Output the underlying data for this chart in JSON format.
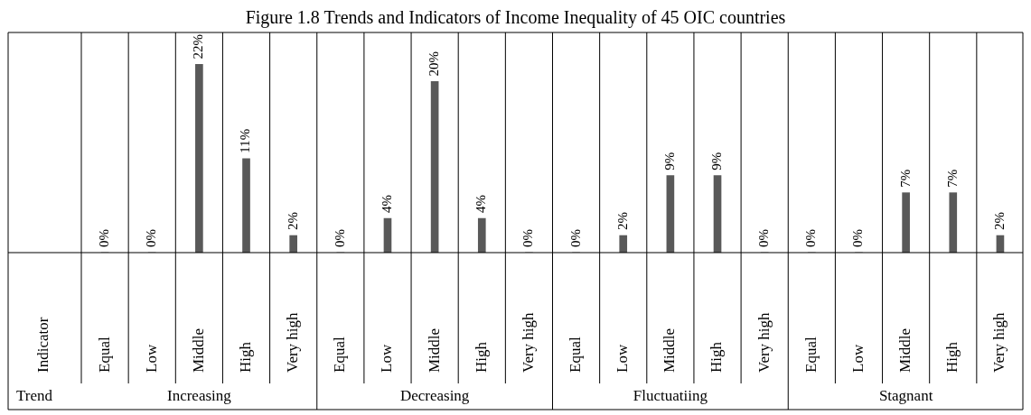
{
  "chart_data": {
    "type": "bar",
    "title": "Figure 1.8 Trends and Indicators of Income Inequality of 45 OIC countries",
    "categories": [
      "Equal",
      "Low",
      "Middle",
      "High",
      "Very high",
      "Equal",
      "Low",
      "Middle",
      "High",
      "Very high",
      "Equal",
      "Low",
      "Middle",
      "High",
      "Very high",
      "Equal",
      "Low",
      "Middle",
      "High",
      "Very high"
    ],
    "values": [
      0,
      0,
      22,
      11,
      2,
      0,
      4,
      20,
      4,
      0,
      0,
      2,
      9,
      9,
      0,
      0,
      0,
      7,
      7,
      2
    ],
    "value_labels": [
      "0%",
      "0%",
      "22%",
      "11%",
      "2%",
      "0%",
      "4%",
      "20%",
      "4%",
      "0%",
      "0%",
      "2%",
      "9%",
      "9%",
      "0%",
      "0%",
      "0%",
      "7%",
      "7%",
      "2%"
    ],
    "color": "#595959",
    "annotations": [
      "Indicator",
      "Trend",
      "Increasing",
      "Decreasing",
      "Fluctuatiing",
      "Stagnant"
    ]
  }
}
